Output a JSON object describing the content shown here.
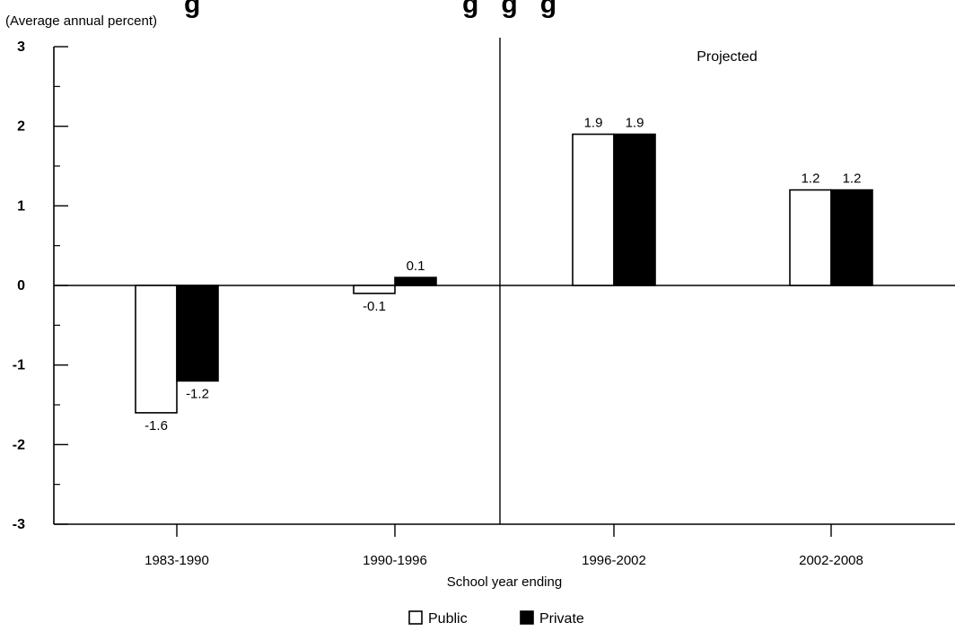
{
  "chart_data": {
    "type": "bar",
    "title": "g                                   g   g   g",
    "units_label": "(Average annual percent)",
    "xlabel": "School year ending",
    "ylabel": "",
    "categories": [
      "1983-1990",
      "1990-1996",
      "1996-2002",
      "2002-2008"
    ],
    "series": [
      {
        "name": "Public",
        "values": [
          -1.6,
          -0.1,
          1.9,
          1.2
        ],
        "labels": [
          "-1.6",
          "-0.1",
          "1.9",
          "1.2"
        ],
        "color": "#ffffff"
      },
      {
        "name": "Private",
        "values": [
          -1.2,
          0.1,
          1.9,
          1.2
        ],
        "labels": [
          "-1.2",
          "0.1",
          "1.9",
          "1.2"
        ],
        "color": "#000000"
      }
    ],
    "ylim": [
      -3,
      3
    ],
    "yticks": [
      3,
      2,
      1,
      0,
      -1,
      -2,
      -3
    ],
    "ytick_labels": [
      "3",
      "2",
      "1",
      "0",
      "-1",
      "-2",
      "-3"
    ],
    "annotation": "Projected",
    "projection_divider_between": [
      "1990-1996",
      "1996-2002"
    ],
    "grid": false,
    "legend_position": "bottom-center"
  }
}
